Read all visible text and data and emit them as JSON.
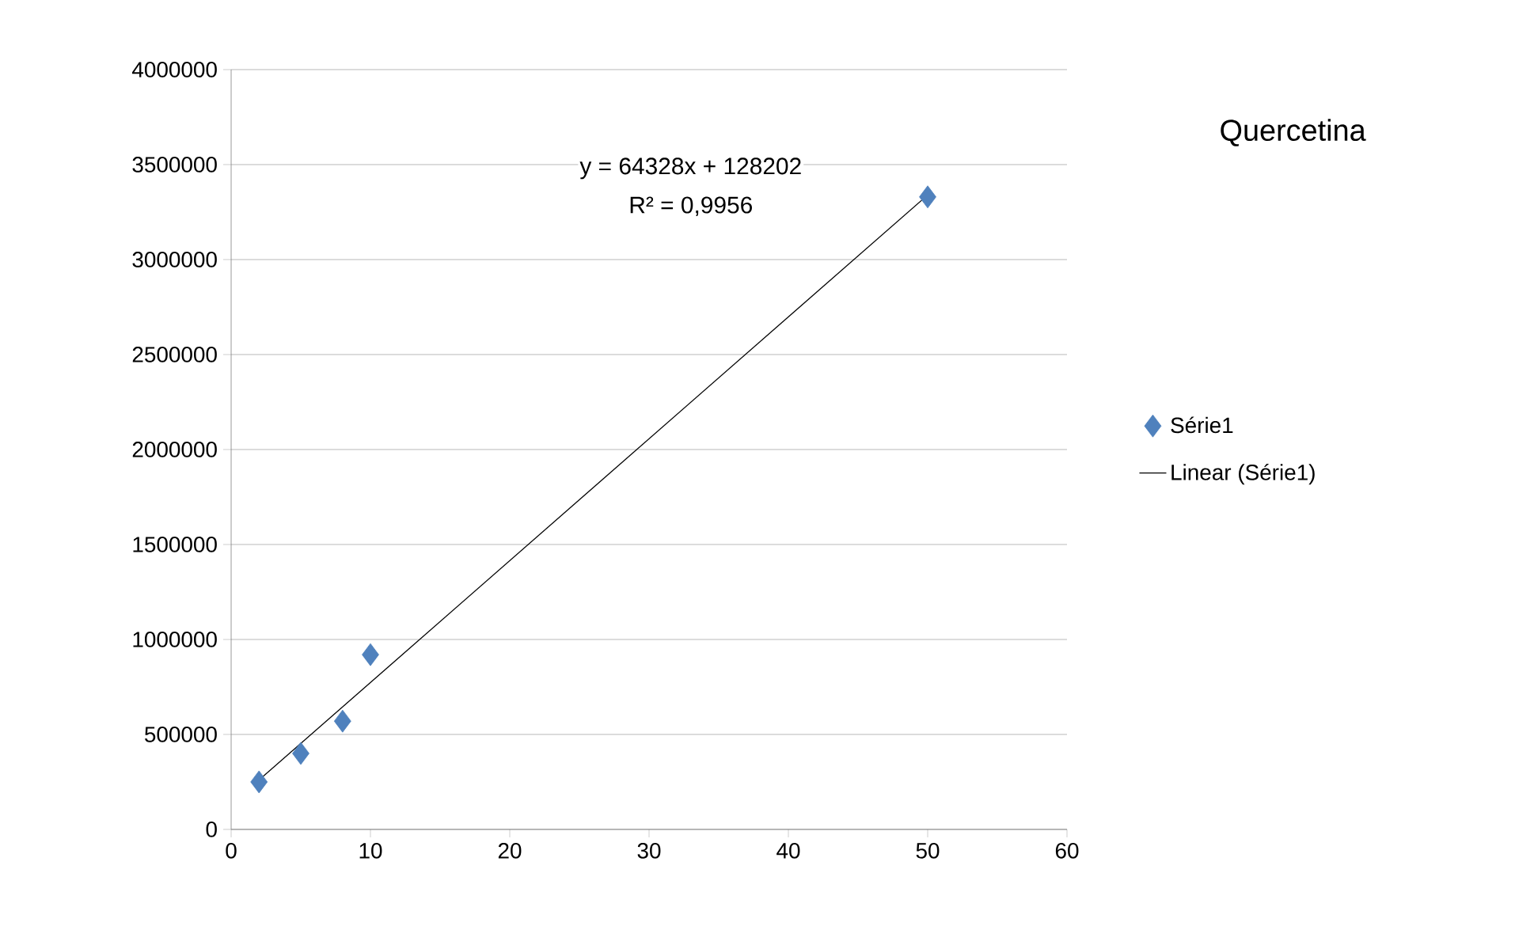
{
  "chart_data": {
    "type": "scatter",
    "title": "Quercetina",
    "xlim": [
      0,
      60
    ],
    "xticks": [
      0,
      10,
      20,
      30,
      40,
      50,
      60
    ],
    "ylim": [
      0,
      4000000
    ],
    "yticks": [
      0,
      500000,
      1000000,
      1500000,
      2000000,
      2500000,
      3000000,
      3500000,
      4000000
    ],
    "grid": "y",
    "legend": "right",
    "series": [
      {
        "name": "Série1",
        "marker": "diamond",
        "color": "#4f81bd",
        "x": [
          2,
          5,
          8,
          10,
          50
        ],
        "values": [
          250000,
          400000,
          570000,
          920000,
          3330000
        ]
      },
      {
        "name": "Linear (Série1)",
        "type": "line",
        "marker": "none",
        "color": "#000000",
        "x": [
          2,
          50
        ],
        "values": [
          260000,
          3340000
        ]
      }
    ],
    "annotations": [
      "y = 64328x + 128202",
      "R² = 0,9956"
    ]
  }
}
